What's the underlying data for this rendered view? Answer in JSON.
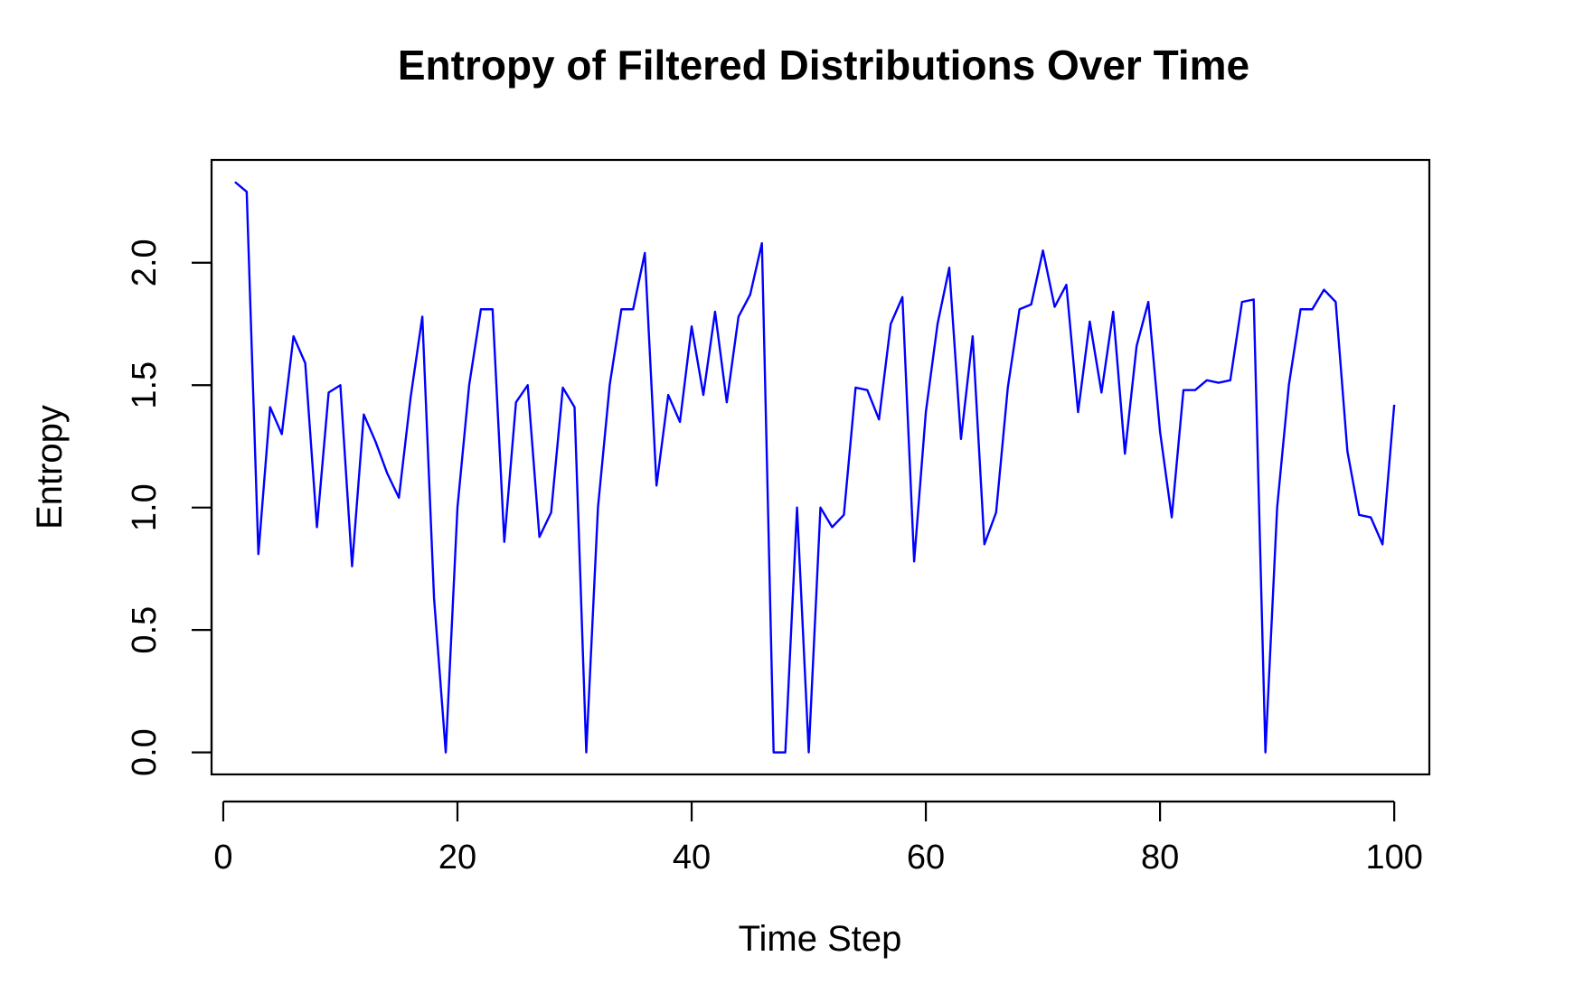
{
  "chart_data": {
    "type": "line",
    "title": "Entropy of Filtered Distributions Over Time",
    "xlabel": "Time Step",
    "ylabel": "Entropy",
    "xlim": [
      -1.0,
      103.0
    ],
    "ylim": [
      -0.09,
      2.42
    ],
    "x_ticks": [
      0,
      20,
      40,
      60,
      80,
      100
    ],
    "x_tick_labels": [
      "0",
      "20",
      "40",
      "60",
      "80",
      "100"
    ],
    "y_ticks": [
      0.0,
      0.5,
      1.0,
      1.5,
      2.0
    ],
    "y_tick_labels": [
      "0.0",
      "0.5",
      "1.0",
      "1.5",
      "2.0"
    ],
    "grid": false,
    "legend": "none",
    "series": [
      {
        "color": "#0000ff",
        "x": [
          1,
          2,
          3,
          4,
          5,
          6,
          7,
          8,
          9,
          10,
          11,
          12,
          13,
          14,
          15,
          16,
          17,
          18,
          19,
          20,
          21,
          22,
          23,
          24,
          25,
          26,
          27,
          28,
          29,
          30,
          31,
          32,
          33,
          34,
          35,
          36,
          37,
          38,
          39,
          40,
          41,
          42,
          43,
          44,
          45,
          46,
          47,
          48,
          49,
          50,
          51,
          52,
          53,
          54,
          55,
          56,
          57,
          58,
          59,
          60,
          61,
          62,
          63,
          64,
          65,
          66,
          67,
          68,
          69,
          70,
          71,
          72,
          73,
          74,
          75,
          76,
          77,
          78,
          79,
          80,
          81,
          82,
          83,
          84,
          85,
          86,
          87,
          88,
          89,
          90,
          91,
          92,
          93,
          94,
          95,
          96,
          97,
          98,
          99,
          100
        ],
        "values": [
          2.33,
          2.29,
          0.81,
          1.41,
          1.3,
          1.7,
          1.59,
          0.92,
          1.47,
          1.5,
          0.76,
          1.38,
          1.27,
          1.14,
          1.04,
          1.45,
          1.78,
          0.63,
          0.0,
          1.0,
          1.5,
          1.81,
          1.81,
          0.86,
          1.43,
          1.5,
          0.88,
          0.98,
          1.49,
          1.41,
          0.0,
          1.0,
          1.5,
          1.81,
          1.81,
          2.04,
          1.09,
          1.46,
          1.35,
          1.74,
          1.46,
          1.8,
          1.43,
          1.78,
          1.87,
          2.08,
          0.0,
          0.0,
          1.0,
          0.0,
          1.0,
          0.92,
          0.97,
          1.49,
          1.48,
          1.36,
          1.75,
          1.86,
          0.78,
          1.39,
          1.75,
          1.98,
          1.28,
          1.7,
          0.85,
          0.98,
          1.49,
          1.81,
          1.83,
          2.05,
          1.82,
          1.91,
          1.39,
          1.76,
          1.47,
          1.8,
          1.22,
          1.66,
          1.84,
          1.31,
          0.96,
          1.48,
          1.48,
          1.52,
          1.51,
          1.52,
          1.84,
          1.85,
          0.0,
          1.0,
          1.5,
          1.81,
          1.81,
          1.89,
          1.84,
          1.23,
          0.97,
          0.96,
          0.85,
          1.42
        ]
      }
    ]
  }
}
